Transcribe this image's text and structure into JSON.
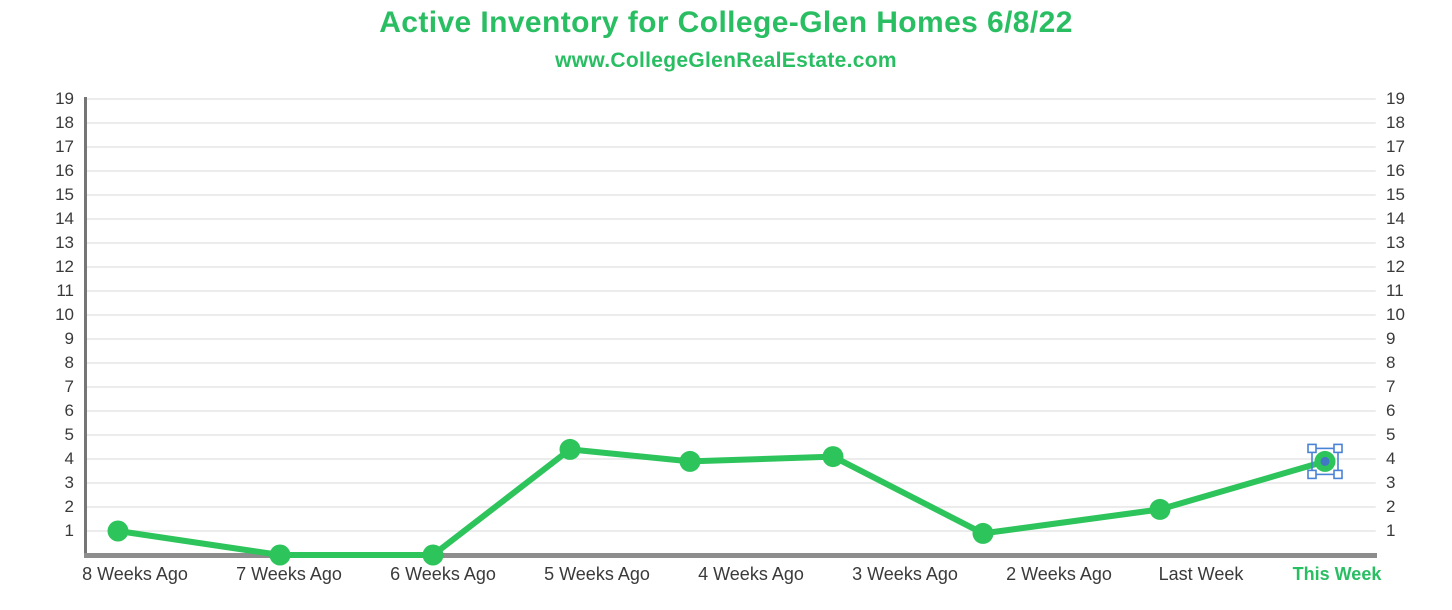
{
  "chart_data": {
    "type": "line",
    "title": "Active Inventory for College-Glen Homes 6/8/22",
    "subtitle": "www.CollegeGlenRealEstate.com",
    "categories": [
      "8 Weeks Ago",
      "7 Weeks Ago",
      "6 Weeks Ago",
      "5 Weeks Ago",
      "4 Weeks Ago",
      "3 Weeks Ago",
      "2 Weeks Ago",
      "Last Week",
      "This Week"
    ],
    "values": [
      1,
      0,
      0,
      4,
      4,
      4,
      1,
      2,
      4
    ],
    "values_drawn": [
      1,
      0,
      0,
      4.4,
      3.9,
      4.1,
      0.9,
      1.9,
      3.9
    ],
    "y_ticks": [
      1,
      2,
      3,
      4,
      5,
      6,
      7,
      8,
      9,
      10,
      11,
      12,
      13,
      14,
      15,
      16,
      17,
      18,
      19
    ],
    "ylim": [
      0,
      19
    ],
    "xlabel": "",
    "ylabel": "",
    "grid": true,
    "legend_position": "none",
    "y_axis_sides": [
      "left",
      "right"
    ],
    "highlighted_category": "This Week",
    "selected_point_index": 8,
    "colors": {
      "title_text": "#2abe63",
      "line": "#2ec45c",
      "point": "#2ec45c",
      "highlight_label": "#2abe63",
      "axis_label": "#3a3a3a",
      "left_axis": "#757575",
      "bottom_axis": "#8d8d8d",
      "gridline": "#ececec",
      "selection_border": "#4a82d6",
      "selection_handle_fill": "#ffffff",
      "selection_inner_dot": "#4277c4",
      "background": "#ffffff"
    }
  }
}
